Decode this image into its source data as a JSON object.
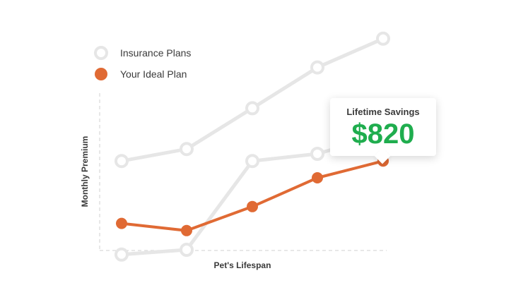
{
  "chart_data": {
    "type": "line",
    "xlabel": "Pet's Lifespan",
    "ylabel": "Monthly Premium",
    "x": [
      1,
      2,
      3,
      4,
      5
    ],
    "ylim": [
      0,
      100
    ],
    "grid": false,
    "legend_position": "top-left",
    "series": [
      {
        "name": "Insurance Plans",
        "style": "hollow",
        "color": "#e6e6e6",
        "values": [
          47,
          52,
          69,
          86,
          98
        ]
      },
      {
        "name": "Insurance Plans",
        "style": "hollow",
        "color": "#e6e6e6",
        "values": [
          8,
          10,
          47,
          50,
          58
        ],
        "in_legend": false
      },
      {
        "name": "Your Ideal Plan",
        "style": "filled",
        "color": "#e06a34",
        "values": [
          21,
          18,
          28,
          40,
          47
        ]
      }
    ],
    "annotation": {
      "title": "Lifetime Savings",
      "value": "$820",
      "color": "#1fad4e"
    }
  },
  "legend": [
    {
      "label": "Insurance Plans",
      "style": "hollow"
    },
    {
      "label": "Your Ideal Plan",
      "style": "filled"
    }
  ]
}
